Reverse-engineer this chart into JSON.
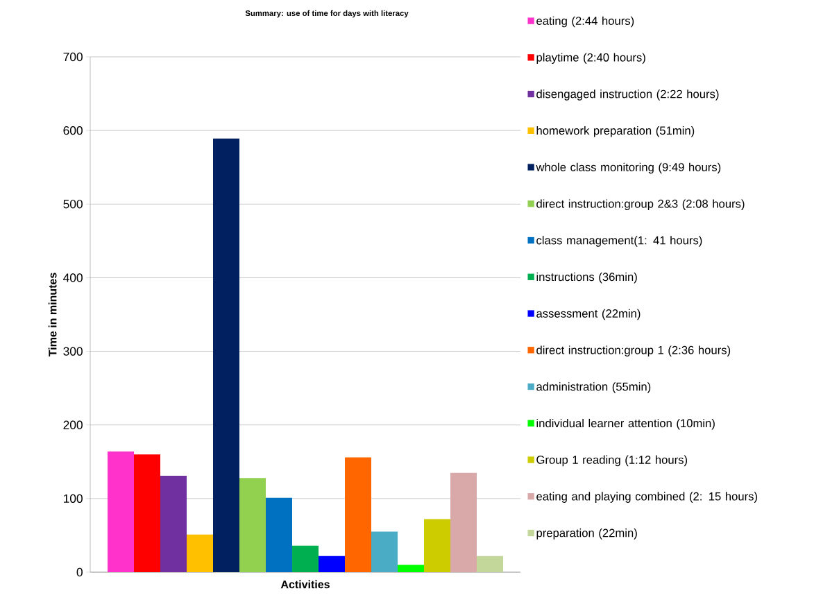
{
  "chart_data": {
    "type": "bar",
    "title": "Summary: use of time for days with literacy",
    "xlabel": "Activities",
    "ylabel": "Time in minutes",
    "categories": [
      null
    ],
    "series": [
      {
        "name": "eating (2:44 hours)",
        "color": "#ff33cc",
        "values": [
          164
        ]
      },
      {
        "name": "playtime (2:40 hours)",
        "color": "#ff0000",
        "values": [
          160
        ]
      },
      {
        "name": "disengaged instruction (2:22 hours)",
        "color": "#7030a0",
        "values": [
          131
        ]
      },
      {
        "name": "homework preparation (51min)",
        "color": "#ffc000",
        "values": [
          51
        ]
      },
      {
        "name": "whole class monitoring (9:49 hours)",
        "color": "#002060",
        "values": [
          589
        ]
      },
      {
        "name": "direct instruction:group 2&3 (2:08 hours)",
        "color": "#92d050",
        "values": [
          128
        ]
      },
      {
        "name": "class management(1: 41 hours)",
        "color": "#0070c0",
        "values": [
          101
        ]
      },
      {
        "name": "instructions (36min)",
        "color": "#00b050",
        "values": [
          36
        ]
      },
      {
        "name": "assessment (22min)",
        "color": "#0000ff",
        "values": [
          22
        ]
      },
      {
        "name": "direct instruction:group 1 (2:36 hours)",
        "color": "#ff6600",
        "values": [
          156
        ]
      },
      {
        "name": "administration (55min)",
        "color": "#4bacc6",
        "values": [
          55
        ]
      },
      {
        "name": "individual learner attention (10min)",
        "color": "#00ff00",
        "values": [
          10
        ]
      },
      {
        "name": "Group 1 reading (1:12 hours)",
        "color": "#cccc00",
        "values": [
          72
        ]
      },
      {
        "name": "eating and playing combined (2: 15 hours)",
        "color": "#d9a9a9",
        "values": [
          135
        ]
      },
      {
        "name": "preparation (22min)",
        "color": "#c4d79b",
        "values": [
          22
        ]
      }
    ],
    "ylim": [
      0,
      700
    ],
    "yticks": [
      0,
      100,
      200,
      300,
      400,
      500,
      600,
      700
    ],
    "grid": "y",
    "legend": "right"
  }
}
